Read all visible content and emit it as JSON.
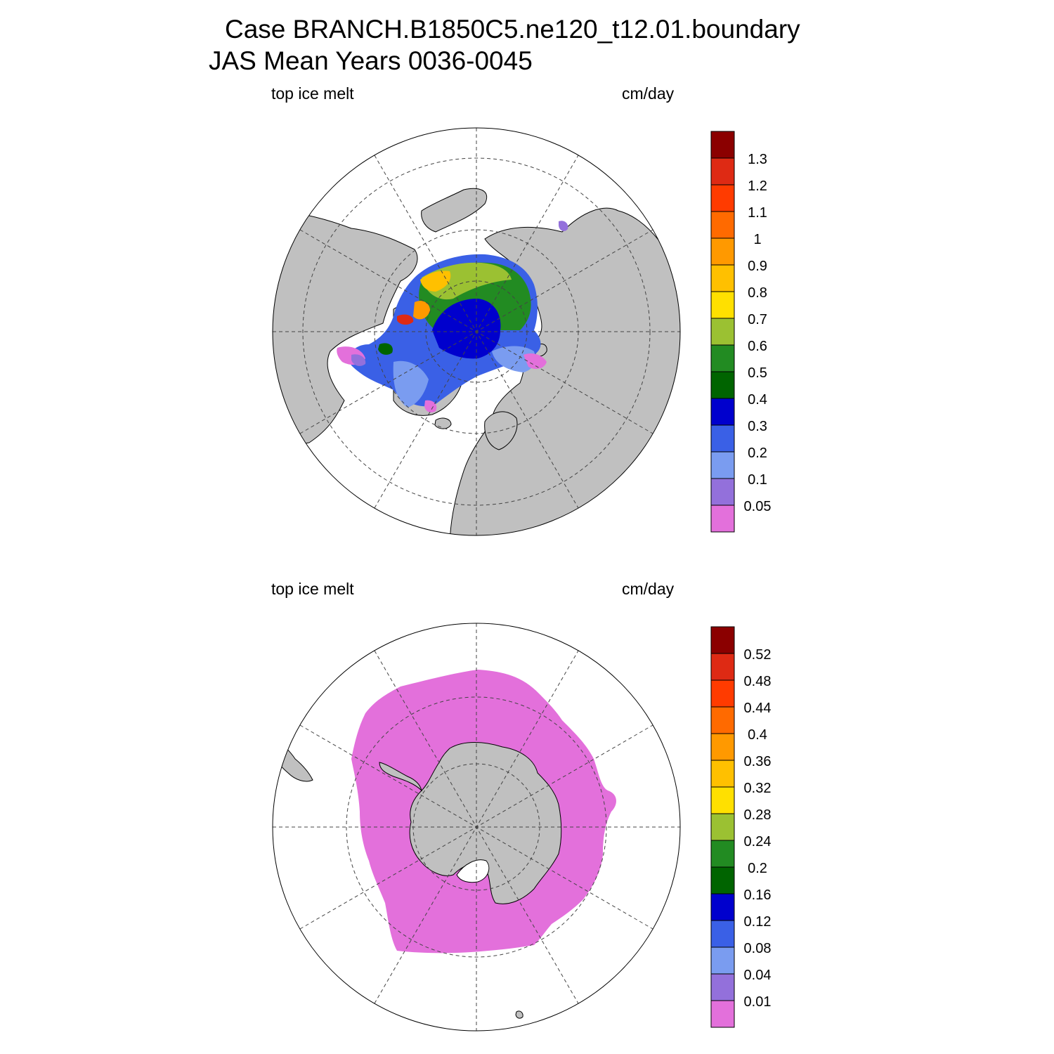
{
  "header": {
    "line1": "Case BRANCH.B1850C5.ne120_t12.01.boundary",
    "line2": "JAS Mean   Years 0036-0045"
  },
  "panels": [
    {
      "id": "north",
      "variable": "top ice melt",
      "units": "cm/day",
      "hemisphere": "northern",
      "colorbar": {
        "labels": [
          "1.3",
          "1.2",
          "1.1",
          "1",
          "0.9",
          "0.8",
          "0.7",
          "0.6",
          "0.5",
          "0.4",
          "0.3",
          "0.2",
          "0.1",
          "0.05"
        ],
        "colors": [
          "#8b0000",
          "#de2a14",
          "#ff3b00",
          "#ff6a00",
          "#ff9900",
          "#ffc000",
          "#ffe000",
          "#9bc132",
          "#228b22",
          "#006400",
          "#0000cd",
          "#3a60e6",
          "#7a9cf0",
          "#9370db",
          "#e370db"
        ]
      },
      "colors": {
        "land": "#c0c0c0",
        "ocean": "#ffffff"
      }
    },
    {
      "id": "south",
      "variable": "top ice melt",
      "units": "cm/day",
      "hemisphere": "southern",
      "colorbar": {
        "labels": [
          "0.52",
          "0.48",
          "0.44",
          "0.4",
          "0.36",
          "0.32",
          "0.28",
          "0.24",
          "0.2",
          "0.16",
          "0.12",
          "0.08",
          "0.04",
          "0.01"
        ],
        "colors": [
          "#8b0000",
          "#de2a14",
          "#ff3b00",
          "#ff6a00",
          "#ff9900",
          "#ffc000",
          "#ffe000",
          "#9bc132",
          "#228b22",
          "#006400",
          "#0000cd",
          "#3a60e6",
          "#7a9cf0",
          "#9370db",
          "#e370db"
        ]
      },
      "colors": {
        "land": "#c0c0c0",
        "ocean": "#ffffff"
      }
    }
  ]
}
